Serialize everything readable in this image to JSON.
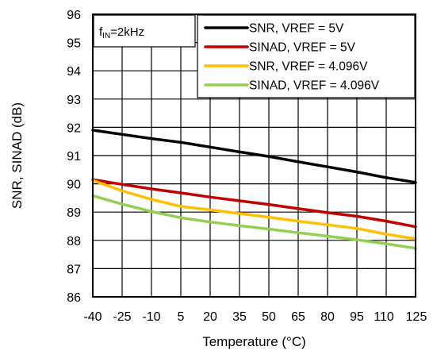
{
  "chart_data": {
    "type": "line",
    "xlabel": "Temperature (°C)",
    "ylabel": "SNR, SINAD (dB)",
    "annotation": {
      "main": "f",
      "sub": "IN",
      "rest": "=2kHz"
    },
    "x": [
      -40,
      -25,
      -10,
      5,
      20,
      35,
      50,
      65,
      80,
      95,
      110,
      125
    ],
    "x_ticks": [
      -40,
      -25,
      -10,
      5,
      20,
      35,
      50,
      65,
      80,
      95,
      110,
      125
    ],
    "xlim": [
      -40,
      125
    ],
    "y_ticks": [
      86,
      87,
      88,
      89,
      90,
      91,
      92,
      93,
      94,
      95,
      96
    ],
    "ylim": [
      86,
      96
    ],
    "grid": true,
    "legend_position": "top-right",
    "series": [
      {
        "name": "SNR, VREF = 5V",
        "color": "#000000",
        "values": [
          91.9,
          91.75,
          91.6,
          91.47,
          91.3,
          91.13,
          90.97,
          90.78,
          90.6,
          90.42,
          90.22,
          90.05
        ]
      },
      {
        "name": "SINAD, VREF = 5V",
        "color": "#c00000",
        "values": [
          90.15,
          89.98,
          89.82,
          89.68,
          89.53,
          89.4,
          89.27,
          89.12,
          88.98,
          88.85,
          88.68,
          88.48
        ]
      },
      {
        "name": "SNR, VREF = 4.096V",
        "color": "#ffc000",
        "values": [
          90.12,
          89.75,
          89.45,
          89.2,
          89.08,
          88.95,
          88.82,
          88.68,
          88.55,
          88.42,
          88.22,
          88.05
        ]
      },
      {
        "name": "SINAD, VREF = 4.096V",
        "color": "#92d050",
        "values": [
          89.58,
          89.28,
          89.02,
          88.8,
          88.65,
          88.52,
          88.4,
          88.27,
          88.15,
          88.02,
          87.88,
          87.72
        ]
      }
    ]
  }
}
